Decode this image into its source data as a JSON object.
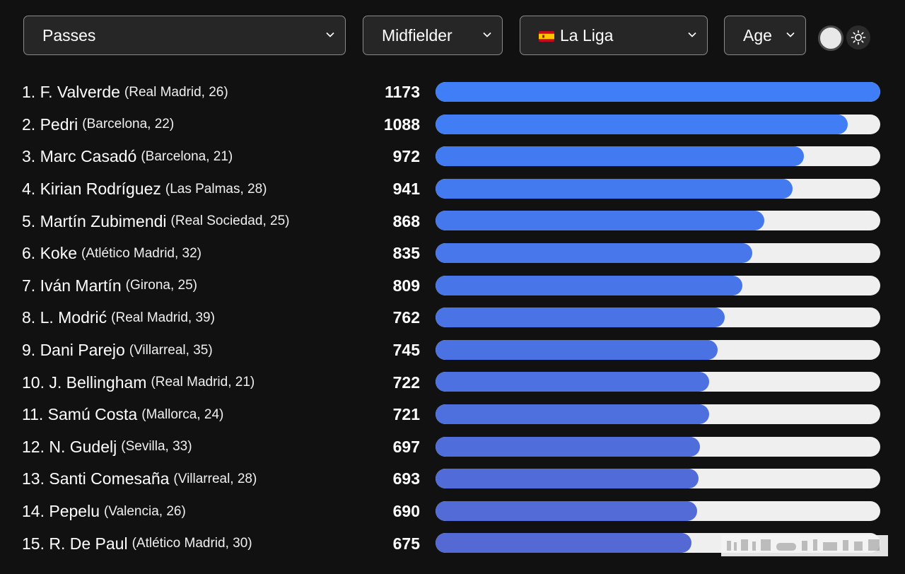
{
  "filters": {
    "metric": "Passes",
    "position": "Midfielder",
    "league": "La Liga",
    "sort": "Age"
  },
  "colors": {
    "bar_start": "#3f7ef6",
    "bar_end": "#5469d4",
    "track": "#efefef",
    "background": "#111111"
  },
  "icons": {
    "chevron": "chevron-down-icon",
    "flag": "spain-flag-icon",
    "theme": "sun-icon"
  },
  "max_value": 1173,
  "players": [
    {
      "rank_name": "1. F. Valverde",
      "meta": "(Real Madrid, 26)",
      "value": 1173
    },
    {
      "rank_name": "2. Pedri",
      "meta": "(Barcelona, 22)",
      "value": 1088
    },
    {
      "rank_name": "3. Marc Casadó",
      "meta": "(Barcelona, 21)",
      "value": 972
    },
    {
      "rank_name": "4. Kirian Rodríguez",
      "meta": "(Las Palmas, 28)",
      "value": 941
    },
    {
      "rank_name": "5. Martín Zubimendi",
      "meta": "(Real Sociedad, 25)",
      "value": 868
    },
    {
      "rank_name": "6. Koke",
      "meta": "(Atlético Madrid, 32)",
      "value": 835
    },
    {
      "rank_name": "7. Iván Martín",
      "meta": "(Girona, 25)",
      "value": 809
    },
    {
      "rank_name": "8. L. Modrić",
      "meta": "(Real Madrid, 39)",
      "value": 762
    },
    {
      "rank_name": "9. Dani Parejo",
      "meta": "(Villarreal, 35)",
      "value": 745
    },
    {
      "rank_name": "10. J. Bellingham",
      "meta": "(Real Madrid, 21)",
      "value": 722
    },
    {
      "rank_name": "11. Samú Costa",
      "meta": "(Mallorca, 24)",
      "value": 721
    },
    {
      "rank_name": "12. N. Gudelj",
      "meta": "(Sevilla, 33)",
      "value": 697
    },
    {
      "rank_name": "13. Santi Comesaña",
      "meta": "(Villarreal, 28)",
      "value": 693
    },
    {
      "rank_name": "14. Pepelu",
      "meta": "(Valencia, 26)",
      "value": 690
    },
    {
      "rank_name": "15. R. De Paul",
      "meta": "(Atlético Madrid, 30)",
      "value": 675
    }
  ]
}
